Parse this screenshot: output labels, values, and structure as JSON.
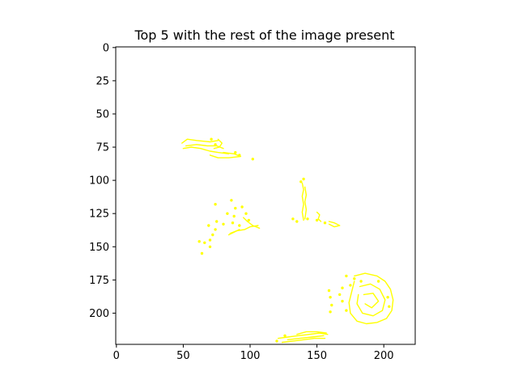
{
  "chart_data": {
    "type": "image",
    "title": "Top 5 with the rest of the image present",
    "xlabel": "",
    "ylabel": "",
    "xlim": [
      -0.5,
      223.5
    ],
    "ylim": [
      223.5,
      -0.5
    ],
    "xticks": [
      0,
      50,
      100,
      150,
      200
    ],
    "yticks": [
      0,
      25,
      50,
      75,
      100,
      125,
      150,
      175,
      200
    ],
    "grid": false,
    "background_color": "#ffffff",
    "mark_color": "#ffff00",
    "regions": [
      {
        "name": "upper-left cluster",
        "polylines": [
          [
            [
              49,
              72
            ],
            [
              53,
              69
            ],
            [
              60,
              70
            ],
            [
              70,
              71
            ],
            [
              76,
              70
            ]
          ],
          [
            [
              50,
              76
            ],
            [
              56,
              75
            ],
            [
              63,
              76
            ],
            [
              70,
              78
            ],
            [
              76,
              79
            ],
            [
              84,
              80
            ]
          ],
          [
            [
              52,
              74
            ],
            [
              60,
              73
            ],
            [
              68,
              74
            ],
            [
              75,
              74
            ],
            [
              80,
              76
            ]
          ],
          [
            [
              70,
              81
            ],
            [
              76,
              83
            ],
            [
              84,
              83
            ],
            [
              93,
              82
            ],
            [
              88,
              80
            ],
            [
              80,
              79
            ]
          ],
          [
            [
              76,
              69
            ],
            [
              79,
              72
            ],
            [
              77,
              75
            ],
            [
              73,
              76
            ]
          ]
        ],
        "points": [
          [
            102,
            84
          ],
          [
            89,
            79
          ],
          [
            92,
            81
          ],
          [
            71,
            69
          ],
          [
            74,
            73
          ]
        ]
      },
      {
        "name": "center-left cluster",
        "polylines": [
          [
            [
              85,
              140
            ],
            [
              90,
              138
            ],
            [
              96,
              137
            ],
            [
              100,
              135
            ],
            [
              106,
              134
            ]
          ],
          [
            [
              95,
              128
            ],
            [
              98,
              131
            ],
            [
              102,
              134
            ],
            [
              107,
              136
            ]
          ],
          [
            [
              84,
              141
            ],
            [
              88,
              139
            ],
            [
              92,
              137
            ]
          ]
        ],
        "points": [
          [
            74,
            118
          ],
          [
            86,
            115
          ],
          [
            89,
            121
          ],
          [
            88,
            127
          ],
          [
            94,
            120
          ],
          [
            97,
            125
          ],
          [
            99,
            130
          ],
          [
            83,
            125
          ],
          [
            87,
            132
          ],
          [
            92,
            134
          ],
          [
            69,
            134
          ],
          [
            74,
            137
          ],
          [
            72,
            141
          ],
          [
            70,
            145
          ],
          [
            66,
            147
          ],
          [
            70,
            150
          ],
          [
            64,
            155
          ],
          [
            75,
            131
          ],
          [
            62,
            146
          ],
          [
            80,
            133
          ]
        ]
      },
      {
        "name": "center cluster",
        "polylines": [
          [
            [
              139,
              102
            ],
            [
              140,
              107
            ],
            [
              139,
              112
            ],
            [
              140,
              118
            ],
            [
              139,
              124
            ],
            [
              140,
              130
            ]
          ],
          [
            [
              141,
              105
            ],
            [
              142,
              111
            ],
            [
              141,
              116
            ],
            [
              142,
              122
            ],
            [
              141,
              129
            ]
          ],
          [
            [
              150,
              124
            ],
            [
              152,
              126
            ],
            [
              151,
              129
            ],
            [
              153,
              131
            ]
          ],
          [
            [
              159,
              131
            ],
            [
              163,
              132
            ],
            [
              167,
              134
            ],
            [
              163,
              135
            ],
            [
              159,
              133
            ]
          ]
        ],
        "points": [
          [
            132,
            129
          ],
          [
            135,
            131
          ],
          [
            138,
            101
          ],
          [
            140,
            99
          ],
          [
            143,
            129
          ],
          [
            150,
            130
          ],
          [
            156,
            132
          ]
        ]
      },
      {
        "name": "lower-right cluster",
        "polylines": [
          [
            [
              178,
              172
            ],
            [
              186,
              170
            ],
            [
              195,
              172
            ],
            [
              201,
              176
            ],
            [
              205,
              182
            ],
            [
              207,
              190
            ],
            [
              206,
              198
            ],
            [
              202,
              204
            ],
            [
              195,
              207
            ],
            [
              187,
              208
            ],
            [
              180,
              206
            ],
            [
              175,
              200
            ],
            [
              174,
              192
            ],
            [
              176,
              184
            ],
            [
              178,
              176
            ]
          ],
          [
            [
              182,
              180
            ],
            [
              190,
              178
            ],
            [
              197,
              182
            ],
            [
              201,
              190
            ],
            [
              199,
              198
            ],
            [
              192,
              202
            ],
            [
              184,
              200
            ],
            [
              180,
              193
            ],
            [
              181,
              186
            ]
          ],
          [
            [
              185,
              186
            ],
            [
              192,
              185
            ],
            [
              196,
              191
            ],
            [
              191,
              196
            ],
            [
              186,
              193
            ]
          ]
        ],
        "points": [
          [
            159,
            183
          ],
          [
            160,
            188
          ],
          [
            161,
            194
          ],
          [
            160,
            199
          ],
          [
            167,
            186
          ],
          [
            169,
            191
          ],
          [
            172,
            198
          ],
          [
            169,
            181
          ],
          [
            175,
            179
          ],
          [
            183,
            176
          ],
          [
            172,
            172
          ],
          [
            178,
            174
          ],
          [
            203,
            188
          ],
          [
            204,
            195
          ],
          [
            196,
            176
          ]
        ]
      },
      {
        "name": "bottom cluster",
        "polylines": [
          [
            [
              121,
              219
            ],
            [
              128,
              218
            ],
            [
              136,
              217
            ],
            [
              144,
              216
            ],
            [
              152,
              215
            ],
            [
              158,
              216
            ]
          ],
          [
            [
              124,
              222
            ],
            [
              132,
              221
            ],
            [
              140,
              220
            ],
            [
              148,
              219
            ],
            [
              156,
              219
            ]
          ],
          [
            [
              135,
              216
            ],
            [
              142,
              214
            ],
            [
              150,
              214
            ],
            [
              157,
              215
            ]
          ],
          [
            [
              128,
              220
            ],
            [
              137,
              219
            ],
            [
              146,
              218
            ],
            [
              155,
              217
            ]
          ]
        ],
        "points": [
          [
            120,
            221
          ],
          [
            126,
            217
          ]
        ]
      }
    ]
  }
}
